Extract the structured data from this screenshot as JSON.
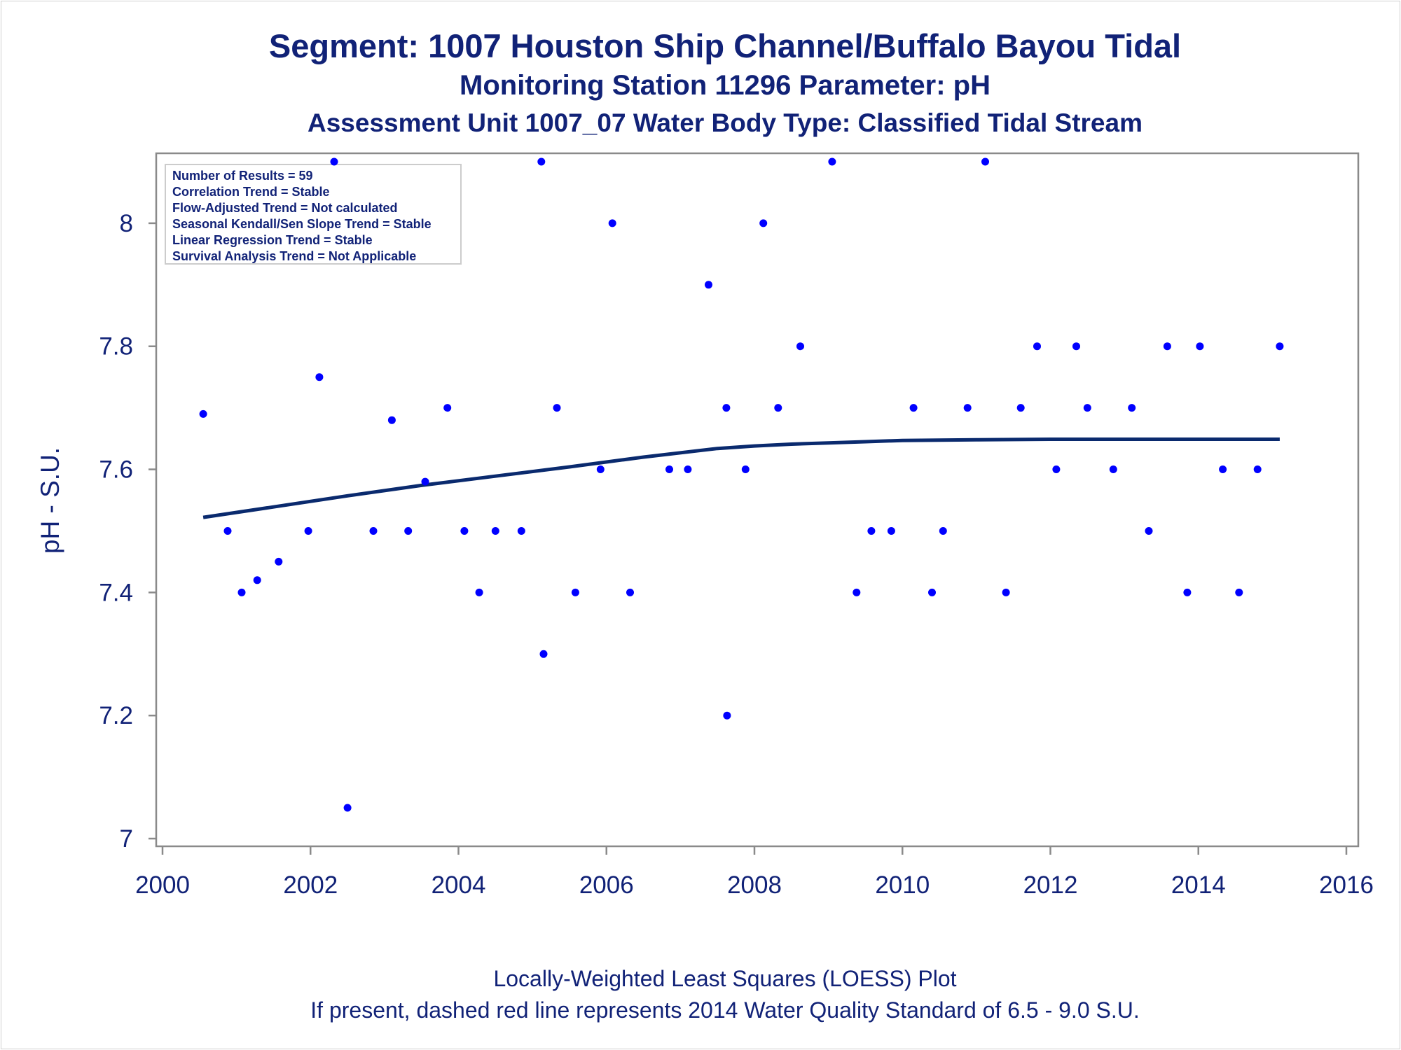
{
  "titles": {
    "line1": "Segment: 1007  Houston Ship Channel/Buffalo Bayou Tidal",
    "line2": "Monitoring Station 11296 Parameter: pH",
    "line3": "Assessment Unit 1007_07   Water Body Type: Classified Tidal Stream"
  },
  "footnotes": {
    "line1": "Locally-Weighted Least Squares (LOESS) Plot",
    "line2": "If present, dashed red line represents 2014 Water Quality Standard of 6.5 - 9.0 S.U."
  },
  "info_box": [
    "Number of Results = 59",
    "Correlation Trend = Stable",
    "Flow-Adjusted Trend = Not calculated",
    "Seasonal Kendall/Sen Slope Trend = Stable",
    "Linear Regression Trend = Stable",
    "Survival Analysis Trend = Not Applicable"
  ],
  "colors": {
    "text": "#112277",
    "points": "#0000ff",
    "loess_line": "#0a2a6e",
    "axis": "#8a8a8a"
  },
  "chart_data": {
    "type": "scatter",
    "xlabel": "",
    "ylabel": "pH - S.U.",
    "xlim": [
      2000,
      2016
    ],
    "ylim": [
      7.0,
      8.1
    ],
    "xticks": [
      2000,
      2002,
      2004,
      2006,
      2008,
      2010,
      2012,
      2014,
      2016
    ],
    "yticks": [
      7.0,
      7.2,
      7.4,
      7.6,
      7.8,
      8.0
    ],
    "ytick_labels": [
      "7",
      "7.2",
      "7.4",
      "7.6",
      "7.8",
      "8"
    ],
    "legend": "top-left",
    "grid": false,
    "series": [
      {
        "kind": "points",
        "x": [
          2000.55,
          2000.88,
          2001.07,
          2001.28,
          2001.57,
          2001.97,
          2002.12,
          2002.32,
          2002.5,
          2002.85,
          2003.1,
          2003.32,
          2003.55,
          2003.85,
          2004.08,
          2004.28,
          2004.5,
          2004.85,
          2005.12,
          2005.15,
          2005.33,
          2005.58,
          2005.92,
          2006.08,
          2006.32,
          2006.85,
          2007.1,
          2007.38,
          2007.62,
          2007.63,
          2007.88,
          2008.12,
          2008.32,
          2008.62,
          2009.05,
          2009.38,
          2009.58,
          2009.85,
          2010.15,
          2010.4,
          2010.55,
          2010.88,
          2011.12,
          2011.4,
          2011.6,
          2011.82,
          2012.08,
          2012.35,
          2012.5,
          2012.85,
          2013.1,
          2013.33,
          2013.58,
          2013.85,
          2014.02,
          2014.33,
          2014.55,
          2014.8,
          2015.1
        ],
        "y": [
          7.69,
          7.5,
          7.4,
          7.42,
          7.45,
          7.5,
          7.75,
          8.1,
          7.05,
          7.5,
          7.68,
          7.5,
          7.58,
          7.7,
          7.5,
          7.4,
          7.5,
          7.5,
          8.1,
          7.3,
          7.7,
          7.4,
          7.6,
          8.0,
          7.4,
          7.6,
          7.6,
          7.9,
          7.7,
          7.2,
          7.6,
          8.0,
          7.7,
          7.8,
          8.1,
          7.4,
          7.5,
          7.5,
          7.7,
          7.4,
          7.5,
          7.7,
          8.1,
          7.4,
          7.7,
          7.8,
          7.6,
          7.8,
          7.7,
          7.6,
          7.7,
          7.5,
          7.8,
          7.4,
          7.8,
          7.6,
          7.4,
          7.6,
          7.8
        ]
      },
      {
        "kind": "loess",
        "x": [
          2000.55,
          2001.5,
          2002.5,
          2003.5,
          2004.5,
          2005.5,
          2006.5,
          2007.5,
          2008.0,
          2008.5,
          2009.0,
          2009.5,
          2010.0,
          2011.0,
          2012.0,
          2013.0,
          2014.0,
          2015.1
        ],
        "y": [
          7.522,
          7.539,
          7.557,
          7.574,
          7.589,
          7.604,
          7.62,
          7.634,
          7.638,
          7.641,
          7.643,
          7.645,
          7.647,
          7.648,
          7.649,
          7.649,
          7.649,
          7.649
        ]
      }
    ]
  }
}
